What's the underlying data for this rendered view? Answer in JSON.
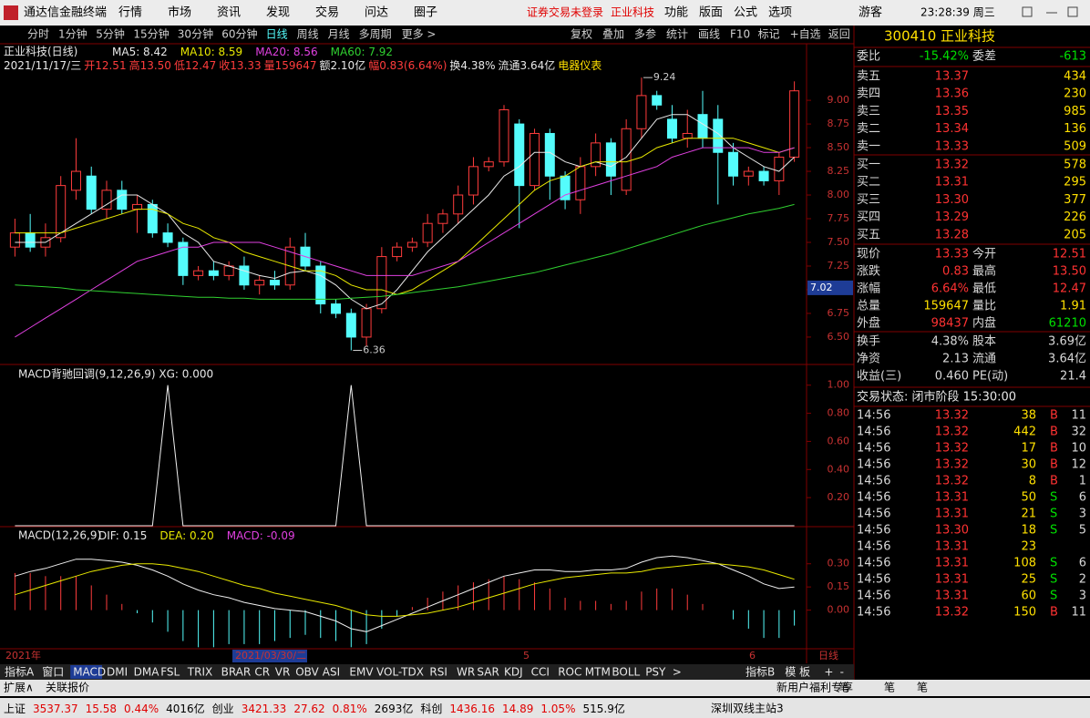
{
  "menu": {
    "app": "通达信金融终端",
    "items": [
      "行情",
      "市场",
      "资讯",
      "发现",
      "交易",
      "问达",
      "圈子"
    ],
    "notice": "证券交易未登录",
    "stock": "正业科技",
    "tools": [
      "功能",
      "版面",
      "公式",
      "选项"
    ],
    "user": "游客",
    "time": "23:28:39 周三"
  },
  "periods": [
    "分时",
    "1分钟",
    "5分钟",
    "15分钟",
    "30分钟",
    "60分钟",
    "日线",
    "周线",
    "月线",
    "多周期",
    "更多 >"
  ],
  "actions": [
    "复权",
    "叠加",
    "多参",
    "统计",
    "画线",
    "F10",
    "标记",
    "+自选",
    "返回"
  ],
  "kline": {
    "title": "正业科技(日线)",
    "info": [
      "2021/11/17/三",
      "开12.51",
      "高13.50",
      "低12.47",
      "收13.33",
      "量159647",
      "额2.10亿",
      "幅0.83(6.64%)",
      "换4.38%",
      "流通3.64亿",
      "电器仪表"
    ],
    "ylim": [
      6.23,
      9.53
    ],
    "yticks": [
      {
        "value": 6.5,
        "label": "6.50"
      },
      {
        "value": 6.75,
        "label": "6.75"
      },
      {
        "value": 7,
        "label": "7.00"
      },
      {
        "value": 7.25,
        "label": "7.25"
      },
      {
        "value": 7.5,
        "label": "7.50"
      },
      {
        "value": 7.75,
        "label": "7.75"
      },
      {
        "value": 8,
        "label": "8.00"
      },
      {
        "value": 8.25,
        "label": "8.25"
      },
      {
        "value": 8.5,
        "label": "8.50"
      },
      {
        "value": 8.75,
        "label": "8.75"
      },
      {
        "value": 9,
        "label": "9.00"
      }
    ],
    "up_color": "#ff3c3c",
    "down_color": "#54fcfc",
    "candles": [
      [
        7.45,
        7.75,
        7.35,
        7.6
      ],
      [
        7.6,
        7.8,
        7.4,
        7.45
      ],
      [
        7.45,
        7.7,
        7.35,
        7.55
      ],
      [
        7.55,
        8.2,
        7.5,
        8.1
      ],
      [
        8.05,
        8.6,
        7.95,
        8.25
      ],
      [
        8.2,
        8.3,
        7.8,
        7.85
      ],
      [
        7.85,
        8.15,
        7.75,
        8.05
      ],
      [
        8.05,
        8.15,
        7.8,
        7.85
      ],
      [
        7.85,
        8,
        7.6,
        7.9
      ],
      [
        7.9,
        7.95,
        7.55,
        7.6
      ],
      [
        7.6,
        7.7,
        7.45,
        7.5
      ],
      [
        7.5,
        7.55,
        7.05,
        7.15
      ],
      [
        7.15,
        7.25,
        7.1,
        7.2
      ],
      [
        7.2,
        7.3,
        7.1,
        7.15
      ],
      [
        7.15,
        7.3,
        7.1,
        7.25
      ],
      [
        7.25,
        7.35,
        7,
        7.05
      ],
      [
        7.05,
        7.15,
        6.95,
        7.1
      ],
      [
        7.1,
        7.2,
        7,
        7.05
      ],
      [
        7.05,
        7.55,
        7,
        7.45
      ],
      [
        7.45,
        7.6,
        7.2,
        7.25
      ],
      [
        7.25,
        7.3,
        6.75,
        6.85
      ],
      [
        6.85,
        6.9,
        6.7,
        6.75
      ],
      [
        6.75,
        6.8,
        6.36,
        6.5
      ],
      [
        6.5,
        6.85,
        6.4,
        6.8
      ],
      [
        6.8,
        7.45,
        6.75,
        7.35
      ],
      [
        7.35,
        7.5,
        7.3,
        7.45
      ],
      [
        7.45,
        7.55,
        7.4,
        7.5
      ],
      [
        7.5,
        7.8,
        7.45,
        7.7
      ],
      [
        7.7,
        7.85,
        7.6,
        7.8
      ],
      [
        7.8,
        8.1,
        7.7,
        8
      ],
      [
        8,
        8.4,
        7.9,
        8.3
      ],
      [
        8.3,
        8.4,
        8.25,
        8.35
      ],
      [
        8.35,
        8.95,
        8.3,
        8.9
      ],
      [
        8.75,
        8.8,
        7.65,
        8.1
      ],
      [
        8.1,
        8.7,
        8.05,
        8.65
      ],
      [
        8.65,
        8.7,
        7.95,
        8.2
      ],
      [
        8.2,
        8.25,
        7.85,
        7.95
      ],
      [
        7.95,
        8.4,
        7.8,
        8.3
      ],
      [
        8.3,
        8.65,
        8.2,
        8.55
      ],
      [
        8.55,
        8.6,
        8,
        8.2
      ],
      [
        8.05,
        8.8,
        8,
        8.7
      ],
      [
        8.7,
        9.24,
        8.6,
        9.05
      ],
      [
        9.05,
        9.1,
        8.9,
        8.95
      ],
      [
        8.8,
        8.95,
        8.55,
        8.6
      ],
      [
        8.6,
        8.9,
        8.5,
        8.65
      ],
      [
        8.85,
        9.1,
        8.5,
        8.6
      ],
      [
        8.8,
        8.95,
        7.9,
        8.45
      ],
      [
        8.45,
        8.55,
        8.1,
        8.2
      ],
      [
        8.2,
        8.3,
        8.1,
        8.25
      ],
      [
        8.25,
        8.3,
        8.1,
        8.15
      ],
      [
        8.15,
        8.45,
        8,
        8.4
      ],
      [
        8.4,
        9.2,
        8.35,
        9.1
      ]
    ],
    "ma": [
      {
        "name": "MA5: 8.42",
        "color": "#e8e8e8",
        "values": [
          7.5,
          7.5,
          7.5,
          7.6,
          7.7,
          7.8,
          7.9,
          8,
          8,
          7.9,
          7.8,
          7.6,
          7.5,
          7.3,
          7.25,
          7.2,
          7.15,
          7.12,
          7.18,
          7.2,
          7.15,
          7.05,
          6.9,
          6.8,
          6.85,
          7,
          7.2,
          7.4,
          7.55,
          7.7,
          7.85,
          8,
          8.2,
          8.3,
          8.45,
          8.45,
          8.35,
          8.3,
          8.35,
          8.3,
          8.4,
          8.6,
          8.8,
          8.85,
          8.85,
          8.75,
          8.65,
          8.5,
          8.4,
          8.3,
          8.25,
          8.4
        ]
      },
      {
        "name": "MA10: 8.59",
        "color": "#e8e800",
        "values": [
          7.6,
          7.6,
          7.6,
          7.6,
          7.65,
          7.7,
          7.75,
          7.8,
          7.85,
          7.85,
          7.8,
          7.7,
          7.65,
          7.55,
          7.5,
          7.4,
          7.35,
          7.3,
          7.25,
          7.2,
          7.2,
          7.15,
          7.05,
          7,
          7,
          6.95,
          7,
          7.1,
          7.2,
          7.3,
          7.45,
          7.6,
          7.75,
          7.9,
          8.05,
          8.15,
          8.2,
          8.3,
          8.35,
          8.35,
          8.35,
          8.4,
          8.5,
          8.55,
          8.6,
          8.6,
          8.6,
          8.6,
          8.55,
          8.5,
          8.45,
          8.5
        ]
      },
      {
        "name": "MA20: 8.56",
        "color": "#e040e0",
        "values": [
          6.5,
          6.6,
          6.7,
          6.8,
          6.9,
          7,
          7.1,
          7.2,
          7.3,
          7.35,
          7.4,
          7.45,
          7.45,
          7.5,
          7.5,
          7.5,
          7.5,
          7.45,
          7.4,
          7.35,
          7.3,
          7.25,
          7.2,
          7.15,
          7.15,
          7.15,
          7.15,
          7.2,
          7.25,
          7.3,
          7.4,
          7.5,
          7.6,
          7.7,
          7.8,
          7.9,
          8,
          8.05,
          8.1,
          8.15,
          8.2,
          8.25,
          8.3,
          8.4,
          8.45,
          8.5,
          8.5,
          8.5,
          8.5,
          8.45,
          8.45,
          8.5
        ]
      },
      {
        "name": "MA60: 7.92",
        "color": "#30d030",
        "values": [
          7.05,
          7.04,
          7.03,
          7.02,
          7,
          6.99,
          6.98,
          6.97,
          6.96,
          6.95,
          6.94,
          6.93,
          6.92,
          6.92,
          6.91,
          6.91,
          6.9,
          6.9,
          6.9,
          6.9,
          6.9,
          6.9,
          6.91,
          6.92,
          6.93,
          6.95,
          6.97,
          6.99,
          7.01,
          7.03,
          7.06,
          7.09,
          7.12,
          7.15,
          7.18,
          7.22,
          7.26,
          7.3,
          7.34,
          7.38,
          7.43,
          7.48,
          7.53,
          7.58,
          7.63,
          7.68,
          7.72,
          7.76,
          7.8,
          7.83,
          7.86,
          7.9
        ]
      }
    ],
    "high_mark": 9.24,
    "low_mark": 6.36,
    "axis_price": 7.02
  },
  "xg": {
    "title": "MACD背驰回调(9,12,26,9) XG: 0.000",
    "ylim": [
      0,
      1.05
    ],
    "yticks": [
      {
        "value": 0.2,
        "label": "0.20"
      },
      {
        "value": 0.4,
        "label": "0.40"
      },
      {
        "value": 0.6,
        "label": "0.60"
      },
      {
        "value": 0.8,
        "label": "0.80"
      },
      {
        "value": 1,
        "label": "1.00"
      }
    ],
    "values": [
      0,
      0,
      0,
      0,
      0,
      0,
      0,
      0,
      0,
      0,
      1,
      0,
      0,
      0,
      0,
      0,
      0,
      0,
      0,
      0,
      0,
      0,
      1,
      0,
      0,
      0,
      0,
      0,
      0,
      0,
      0,
      0,
      0,
      0,
      0,
      0,
      0,
      0,
      0,
      0,
      0,
      0,
      0,
      0,
      0,
      0,
      0,
      0,
      0,
      0,
      0,
      0
    ]
  },
  "macd": {
    "title": "MACD(12,26,9)",
    "labels": [
      "DIF: 0.15",
      "DEA: 0.20",
      "MACD: -0.09"
    ],
    "ylim": [
      -0.25,
      0.44
    ],
    "yticks": [
      {
        "value": 0,
        "label": "0.00"
      },
      {
        "value": 0.15,
        "label": "0.15"
      },
      {
        "value": 0.3,
        "label": "0.30"
      }
    ],
    "dif": [
      0.22,
      0.25,
      0.27,
      0.3,
      0.33,
      0.33,
      0.32,
      0.31,
      0.29,
      0.26,
      0.22,
      0.17,
      0.13,
      0.1,
      0.08,
      0.05,
      0.03,
      0.01,
      0,
      -0.01,
      -0.04,
      -0.07,
      -0.12,
      -0.14,
      -0.1,
      -0.06,
      -0.02,
      0.02,
      0.06,
      0.1,
      0.14,
      0.18,
      0.22,
      0.24,
      0.26,
      0.26,
      0.25,
      0.25,
      0.26,
      0.26,
      0.27,
      0.31,
      0.34,
      0.35,
      0.34,
      0.32,
      0.3,
      0.26,
      0.22,
      0.17,
      0.14,
      0.15
    ],
    "dea": [
      0.1,
      0.13,
      0.16,
      0.19,
      0.22,
      0.25,
      0.27,
      0.29,
      0.3,
      0.3,
      0.29,
      0.27,
      0.25,
      0.22,
      0.19,
      0.16,
      0.14,
      0.11,
      0.09,
      0.07,
      0.05,
      0.03,
      0,
      -0.03,
      -0.04,
      -0.04,
      -0.03,
      -0.02,
      0,
      0.02,
      0.05,
      0.08,
      0.11,
      0.14,
      0.17,
      0.19,
      0.21,
      0.22,
      0.23,
      0.24,
      0.24,
      0.25,
      0.27,
      0.28,
      0.29,
      0.3,
      0.3,
      0.29,
      0.28,
      0.26,
      0.23,
      0.2
    ],
    "bars": [
      0.24,
      0.24,
      0.22,
      0.22,
      0.22,
      0.16,
      0.1,
      0.04,
      -0.02,
      -0.08,
      -0.14,
      -0.2,
      -0.24,
      -0.24,
      -0.22,
      -0.22,
      -0.22,
      -0.2,
      -0.18,
      -0.16,
      -0.18,
      -0.2,
      -0.24,
      -0.22,
      -0.12,
      -0.04,
      0.02,
      0.08,
      0.12,
      0.16,
      0.18,
      0.2,
      0.22,
      0.2,
      0.18,
      0.14,
      0.08,
      0.06,
      0.06,
      0.04,
      0.06,
      0.12,
      0.14,
      0.14,
      0.1,
      0.04,
      0,
      -0.06,
      -0.12,
      -0.18,
      -0.18,
      -0.1
    ]
  },
  "timeline": [
    "2021年",
    "2021/03/30/二",
    "5",
    "6",
    "日线"
  ],
  "indicators": [
    "指标A",
    "窗口",
    "MACD",
    "DMI",
    "DMA",
    "FSL",
    "TRIX",
    "BRAR",
    "CR",
    "VR",
    "OBV",
    "ASI",
    "EMV",
    "VOL-TDX",
    "RSI",
    "WR",
    "SAR",
    "KDJ",
    "CCI",
    "ROC",
    "MTM",
    "BOLL",
    "PSY",
    ">"
  ],
  "indicators_right": [
    "指标B",
    "模 板",
    "+",
    "-"
  ],
  "extra": {
    "left": [
      "扩展∧",
      "关联报价"
    ],
    "right": [
      "新用户福利专享",
      "笔",
      "笔",
      "笔"
    ]
  },
  "status": {
    "items": [
      "上证",
      "3537.37",
      "15.58",
      "0.44%",
      "4016亿",
      "创业",
      "3421.33",
      "27.62",
      "0.81%",
      "2693亿",
      "科创",
      "1436.16",
      "14.89",
      "1.05%",
      "515.9亿"
    ],
    "server": "深圳双线主站3"
  },
  "quote": {
    "code": "300410 正业科技",
    "ratio": [
      "委比",
      "-15.42%",
      "委差",
      "-613"
    ],
    "asks": [
      [
        "卖五",
        "13.37",
        "434"
      ],
      [
        "卖四",
        "13.36",
        "230"
      ],
      [
        "卖三",
        "13.35",
        "985"
      ],
      [
        "卖二",
        "13.34",
        "136"
      ],
      [
        "卖一",
        "13.33",
        "509"
      ]
    ],
    "bids": [
      [
        "买一",
        "13.32",
        "578"
      ],
      [
        "买二",
        "13.31",
        "295"
      ],
      [
        "买三",
        "13.30",
        "377"
      ],
      [
        "买四",
        "13.29",
        "226"
      ],
      [
        "买五",
        "13.28",
        "205"
      ]
    ],
    "stats": [
      [
        "现价",
        "13.33",
        "今开",
        "12.51"
      ],
      [
        "涨跌",
        "0.83",
        "最高",
        "13.50"
      ],
      [
        "涨幅",
        "6.64%",
        "最低",
        "12.47"
      ],
      [
        "总量",
        "159647",
        "量比",
        "1.91"
      ],
      [
        "外盘",
        "98437",
        "内盘",
        "61210"
      ],
      [
        "换手",
        "4.38%",
        "股本",
        "3.69亿"
      ],
      [
        "净资",
        "2.13",
        "流通",
        "3.64亿"
      ],
      [
        "收益(三)",
        "0.460",
        "PE(动)",
        "21.4"
      ]
    ],
    "state": "交易状态: 闭市阶段 15:30:00",
    "ticks": [
      [
        "14:56",
        "13.32",
        "38",
        "B",
        "11"
      ],
      [
        "14:56",
        "13.32",
        "442",
        "B",
        "32"
      ],
      [
        "14:56",
        "13.32",
        "17",
        "B",
        "10"
      ],
      [
        "14:56",
        "13.32",
        "30",
        "B",
        "12"
      ],
      [
        "14:56",
        "13.32",
        "8",
        "B",
        "1"
      ],
      [
        "14:56",
        "13.31",
        "50",
        "S",
        "6"
      ],
      [
        "14:56",
        "13.31",
        "21",
        "S",
        "3"
      ],
      [
        "14:56",
        "13.30",
        "18",
        "S",
        "5"
      ],
      [
        "14:56",
        "13.31",
        "23"
      ],
      [
        "14:56",
        "13.31",
        "108",
        "S",
        "6"
      ],
      [
        "14:56",
        "13.31",
        "25",
        "S",
        "2"
      ],
      [
        "14:56",
        "13.31",
        "60",
        "S",
        "3"
      ],
      [
        "14:56",
        "13.32",
        "150",
        "B",
        "11"
      ]
    ]
  }
}
